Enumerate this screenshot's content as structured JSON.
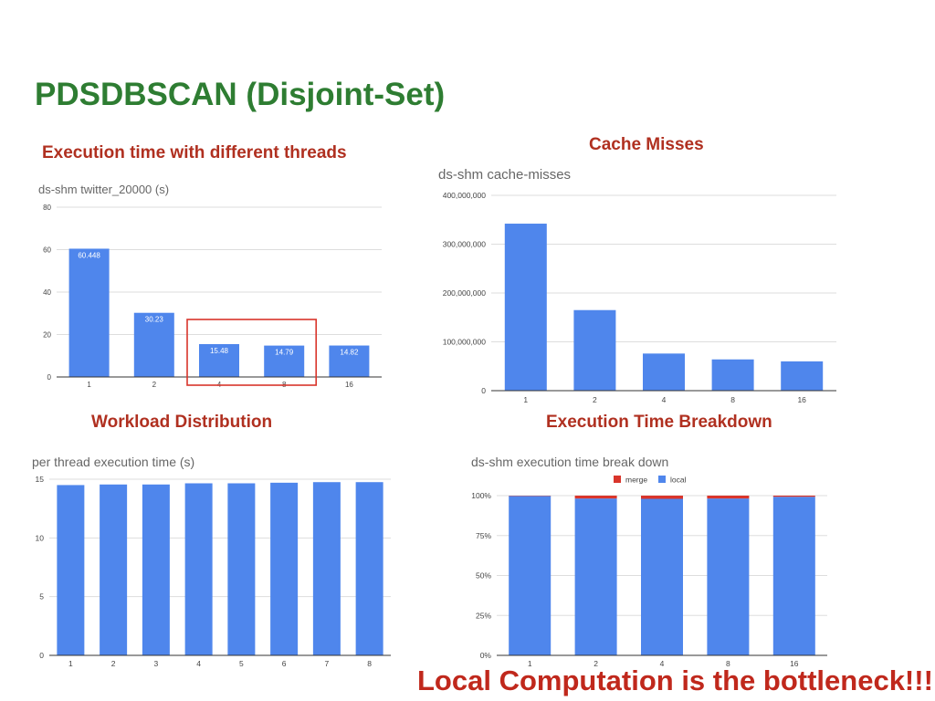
{
  "slide": {
    "title": "PDSDBSCAN (Disjoint-Set)",
    "headings": {
      "threads": "Execution time with different threads",
      "cache": "Cache Misses",
      "workload": "Workload Distribution",
      "breakdown": "Execution Time Breakdown"
    },
    "callout": "Local Computation is the bottleneck!!!"
  },
  "chart_data": [
    {
      "type": "bar",
      "title": "ds-shm twitter_20000 (s)",
      "categories": [
        "1",
        "2",
        "4",
        "8",
        "16"
      ],
      "values": [
        60.448,
        30.23,
        15.48,
        14.79,
        14.82
      ],
      "data_labels": [
        "60.448",
        "30.23",
        "15.48",
        "14.79",
        "14.82"
      ],
      "ylim": [
        0,
        80
      ],
      "yticks": [
        "0",
        "20",
        "40",
        "60",
        "80"
      ],
      "grid": true,
      "bar_color": "#4f86ec",
      "highlight": {
        "categories": [
          "4",
          "8"
        ],
        "color": "#d9352b"
      }
    },
    {
      "type": "bar",
      "title": "ds-shm cache-misses",
      "categories": [
        "1",
        "2",
        "4",
        "8",
        "16"
      ],
      "values": [
        342000000,
        165000000,
        76000000,
        64000000,
        60000000
      ],
      "ylim": [
        0,
        400000000
      ],
      "yticks": [
        "0",
        "100,000,000",
        "200,000,000",
        "300,000,000",
        "400,000,000"
      ],
      "grid": true,
      "bar_color": "#4f86ec"
    },
    {
      "type": "bar",
      "title": "per thread execution time (s)",
      "categories": [
        "1",
        "2",
        "3",
        "4",
        "5",
        "6",
        "7",
        "8"
      ],
      "values": [
        14.5,
        14.55,
        14.55,
        14.65,
        14.65,
        14.7,
        14.75,
        14.75
      ],
      "ylim": [
        0,
        15
      ],
      "yticks": [
        "0",
        "5",
        "10",
        "15"
      ],
      "grid": true,
      "bar_color": "#4f86ec"
    },
    {
      "type": "bar",
      "stacked": true,
      "title": "ds-shm execution time break down",
      "categories": [
        "1",
        "2",
        "4",
        "8",
        "16"
      ],
      "series": [
        {
          "name": "local",
          "values": [
            99.8,
            98.2,
            98.0,
            98.2,
            99.3
          ],
          "color": "#4f86ec"
        },
        {
          "name": "merge",
          "values": [
            0.2,
            1.8,
            2.0,
            1.8,
            0.7
          ],
          "color": "#d9352b"
        }
      ],
      "ylim": [
        0,
        100
      ],
      "yticks": [
        "0%",
        "25%",
        "50%",
        "75%",
        "100%"
      ],
      "legend": "top",
      "grid": true
    }
  ]
}
